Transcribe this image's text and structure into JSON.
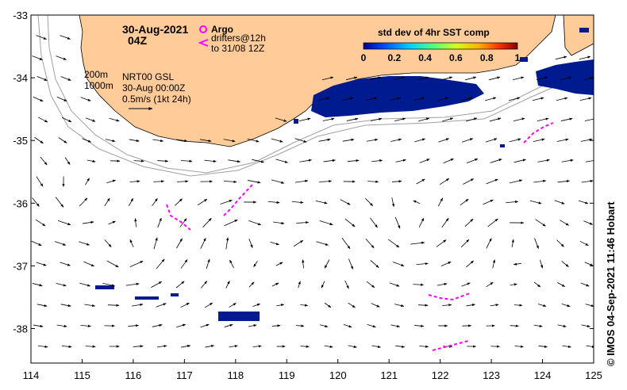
{
  "title": {
    "date": "30-Aug-2021",
    "time": "04Z"
  },
  "legend": {
    "argo_label": "Argo",
    "drifters_label": "drifters@12h",
    "drifters_range": "to 31/08 12Z",
    "argo_color": "#ff00ff",
    "drifter_color": "#ff00ff"
  },
  "info": {
    "isobath_200": "200m",
    "isobath_1000": "1000m",
    "product": "NRT00 GSL",
    "product_time": "30-Aug 00:00Z",
    "scale_label": "0.5m/s (1kt 24h)"
  },
  "colorbar": {
    "title": "std dev of 4hr SST comp",
    "ticks": [
      "0",
      "0.2",
      "0.4",
      "0.6",
      "0.8",
      "1"
    ],
    "colormap": [
      "#00008f",
      "#0050ff",
      "#00d0ff",
      "#50ff80",
      "#d0ff20",
      "#ffb000",
      "#ff3000",
      "#800000"
    ]
  },
  "axes": {
    "x_ticks": [
      "114",
      "115",
      "116",
      "117",
      "118",
      "119",
      "120",
      "121",
      "122",
      "123",
      "124",
      "125"
    ],
    "y_ticks": [
      "-33",
      "-34",
      "-35",
      "-36",
      "-37",
      "-38"
    ],
    "xlim": [
      114,
      125
    ],
    "ylim": [
      -38.55,
      -33
    ]
  },
  "colors": {
    "land": "#ffcc99",
    "shelf_line": "#a0a0a0",
    "sst_patch": "#001a8f"
  },
  "credit": "© IMOS 04-Sep-2021 11:46 Hobart"
}
